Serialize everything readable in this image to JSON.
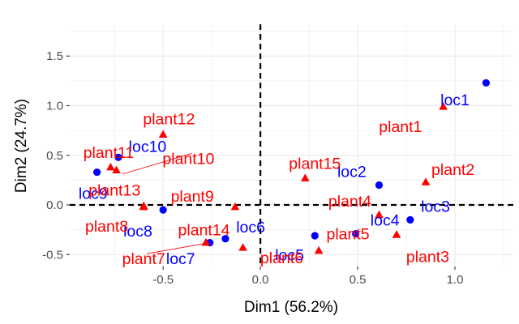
{
  "chart_data": {
    "type": "scatter",
    "title": "",
    "xlabel": "Dim1 (56.2%)",
    "ylabel": "Dim2 (24.7%)",
    "xlim": [
      -0.98,
      1.3
    ],
    "ylim": [
      -0.62,
      1.82
    ],
    "x_ticks": [
      "-0.5",
      "0.0",
      "0.5",
      "1.0"
    ],
    "y_ticks": [
      "-0.5",
      "0.0",
      "0.5",
      "1.0",
      "1.5"
    ],
    "x_tick_values": [
      -0.5,
      0.0,
      0.5,
      1.0
    ],
    "y_tick_values": [
      -0.5,
      0.0,
      0.5,
      1.0,
      1.5
    ],
    "grid": true,
    "reference_lines": {
      "x": 0,
      "y": 0,
      "style": "dashed"
    },
    "colors": {
      "loc": "#0000ff",
      "plant": "#ff0000",
      "grid": "#ebebeb",
      "tick": "#4d4d4d",
      "axis_text": "#000000"
    },
    "series": [
      {
        "marker": "circle",
        "color": "#0000ff",
        "points": [
          {
            "label": "loc1",
            "x": 1.16,
            "y": 1.23,
            "lx": 1.0,
            "ly": 1.06
          },
          {
            "label": "loc2",
            "x": 0.61,
            "y": 0.2,
            "lx": 0.47,
            "ly": 0.34
          },
          {
            "label": "loc3",
            "x": 0.77,
            "y": -0.15,
            "lx": 0.9,
            "ly": -0.01
          },
          {
            "label": "loc4",
            "x": 0.49,
            "y": -0.29,
            "lx": 0.64,
            "ly": -0.15
          },
          {
            "label": "loc5",
            "x": 0.28,
            "y": -0.31,
            "lx": 0.15,
            "ly": -0.5
          },
          {
            "label": "loc6",
            "x": -0.18,
            "y": -0.34,
            "lx": -0.05,
            "ly": -0.22
          },
          {
            "label": "loc7",
            "x": -0.26,
            "y": -0.38,
            "lx": -0.41,
            "ly": -0.54
          },
          {
            "label": "loc8",
            "x": -0.5,
            "y": -0.05,
            "lx": -0.63,
            "ly": -0.26
          },
          {
            "label": "loc9",
            "x": -0.84,
            "y": 0.33,
            "lx": -0.86,
            "ly": 0.12
          },
          {
            "label": "loc10",
            "x": -0.73,
            "y": 0.48,
            "lx": -0.58,
            "ly": 0.59
          }
        ]
      },
      {
        "marker": "triangle",
        "color": "#ff0000",
        "points": [
          {
            "label": "plant1",
            "x": 0.94,
            "y": 0.99,
            "lx": 0.72,
            "ly": 0.79
          },
          {
            "label": "plant2",
            "x": 0.85,
            "y": 0.23,
            "lx": 0.99,
            "ly": 0.36
          },
          {
            "label": "plant3",
            "x": 0.7,
            "y": -0.3,
            "lx": 0.86,
            "ly": -0.52
          },
          {
            "label": "plant4",
            "x": 0.61,
            "y": -0.1,
            "lx": 0.46,
            "ly": 0.04
          },
          {
            "label": "plant5",
            "x": 0.3,
            "y": -0.46,
            "lx": 0.45,
            "ly": -0.29
          },
          {
            "label": "plant6",
            "x": -0.09,
            "y": -0.43,
            "lx": 0.11,
            "ly": -0.53
          },
          {
            "label": "plant7",
            "x": -0.28,
            "y": -0.38,
            "lx": -0.6,
            "ly": -0.54
          },
          {
            "label": "plant8",
            "x": -0.6,
            "y": -0.02,
            "lx": -0.79,
            "ly": -0.21
          },
          {
            "label": "plant9",
            "x": -0.13,
            "y": -0.02,
            "lx": -0.35,
            "ly": 0.09
          },
          {
            "label": "plant10",
            "x": -0.74,
            "y": 0.35,
            "lx": -0.37,
            "ly": 0.47
          },
          {
            "label": "plant11",
            "x": -0.77,
            "y": 0.38,
            "lx": -0.78,
            "ly": 0.53
          },
          {
            "label": "plant12",
            "x": -0.5,
            "y": 0.71,
            "lx": -0.47,
            "ly": 0.87
          },
          {
            "label": "plant13",
            "x": -0.6,
            "y": -0.01,
            "lx": -0.75,
            "ly": 0.15
          },
          {
            "label": "plant14",
            "x": -0.28,
            "y": -0.38,
            "lx": -0.29,
            "ly": -0.25
          },
          {
            "label": "plant15",
            "x": 0.23,
            "y": 0.27,
            "lx": 0.28,
            "ly": 0.42
          }
        ]
      }
    ],
    "connectors": [
      {
        "from": "plant10",
        "to": [
          -0.71,
          0.31
        ]
      },
      {
        "from": "plant7",
        "to": [
          -0.29,
          -0.39
        ]
      }
    ]
  }
}
